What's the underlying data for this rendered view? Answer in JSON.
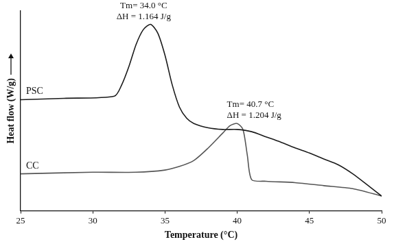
{
  "chart_data": {
    "type": "line",
    "x_label": "Temperature (°C)",
    "y_label": "Heat flow (W/g)",
    "xlim": [
      25,
      50
    ],
    "xticks": [
      25,
      30,
      35,
      40,
      45,
      50
    ],
    "ylim": [
      0,
      100
    ],
    "tick_labels": "x",
    "grid": false,
    "series": [
      {
        "name": "PSC",
        "color": "#1a1a1a",
        "x": [
          25,
          28,
          31.5,
          32,
          32.5,
          33,
          33.5,
          34,
          34.5,
          35,
          35.5,
          36,
          36.5,
          37,
          38,
          39,
          40,
          41,
          42,
          43,
          44,
          45,
          46,
          47,
          48,
          49,
          50
        ],
        "values": [
          55.6,
          56.3,
          57.4,
          63,
          72.2,
          83.3,
          90.7,
          93.3,
          88.9,
          77.8,
          63,
          51.9,
          46.3,
          43.7,
          41.5,
          40.7,
          40.7,
          39.6,
          37,
          34.4,
          31.5,
          28.9,
          25.9,
          23,
          18.5,
          13,
          7.4
        ],
        "annotations": [
          "Tm= 34.0 °C",
          "ΔH = 1.164 J/g"
        ]
      },
      {
        "name": "CC",
        "color": "#555555",
        "x": [
          25,
          30,
          33,
          35,
          36,
          37,
          38,
          39,
          39.5,
          40,
          40.4,
          40.7,
          41,
          42,
          44,
          46,
          48,
          50
        ],
        "values": [
          18.5,
          19.3,
          19.3,
          20.4,
          22.2,
          25.2,
          31.5,
          38.9,
          42.6,
          43.7,
          40.7,
          27.8,
          15.6,
          14.8,
          14.1,
          12.6,
          11.1,
          7.4
        ],
        "annotations": [
          "Tm= 40.7 °C",
          "ΔH = 1.204 J/g"
        ]
      }
    ]
  }
}
